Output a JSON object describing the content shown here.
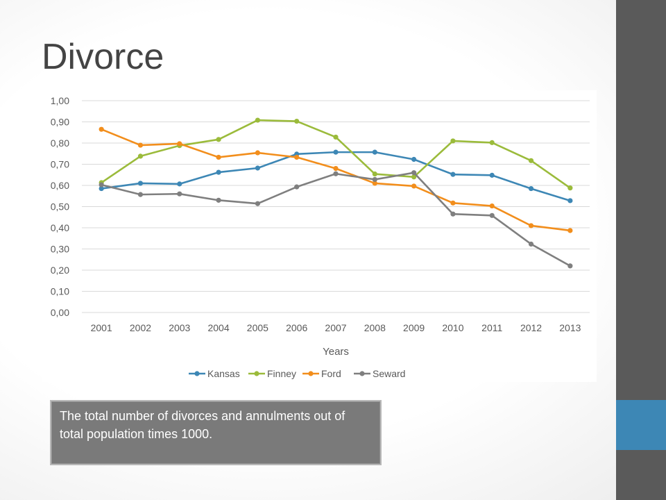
{
  "title": "Divorce",
  "caption": "The total number of divorces and annulments out of total population times 1000.",
  "chart_data": {
    "type": "line",
    "title": "",
    "xlabel": "Years",
    "ylabel": "",
    "categories": [
      "2001",
      "2002",
      "2003",
      "2004",
      "2005",
      "2006",
      "2007",
      "2008",
      "2009",
      "2010",
      "2011",
      "2012",
      "2013"
    ],
    "ylim": [
      0,
      1
    ],
    "yticks": [
      "0,00",
      "0,10",
      "0,20",
      "0,30",
      "0,40",
      "0,50",
      "0,60",
      "0,70",
      "0,80",
      "0,90",
      "1,00"
    ],
    "grid": true,
    "legend_position": "bottom",
    "series": [
      {
        "name": "Kansas",
        "color": "#3d87b5",
        "values": [
          0.585,
          0.61,
          0.607,
          0.662,
          0.682,
          0.748,
          0.757,
          0.757,
          0.723,
          0.652,
          0.648,
          0.585,
          0.528
        ]
      },
      {
        "name": "Finney",
        "color": "#9bbb3b",
        "values": [
          0.613,
          0.738,
          0.788,
          0.817,
          0.908,
          0.903,
          0.828,
          0.654,
          0.64,
          0.81,
          0.802,
          0.717,
          0.588
        ]
      },
      {
        "name": "Ford",
        "color": "#f28e1c",
        "values": [
          0.865,
          0.79,
          0.797,
          0.733,
          0.754,
          0.733,
          0.68,
          0.61,
          0.597,
          0.517,
          0.503,
          0.41,
          0.387
        ]
      },
      {
        "name": "Seward",
        "color": "#7f7f7f",
        "values": [
          0.603,
          0.557,
          0.56,
          0.53,
          0.514,
          0.593,
          0.655,
          0.628,
          0.66,
          0.465,
          0.458,
          0.323,
          0.22
        ]
      }
    ]
  }
}
